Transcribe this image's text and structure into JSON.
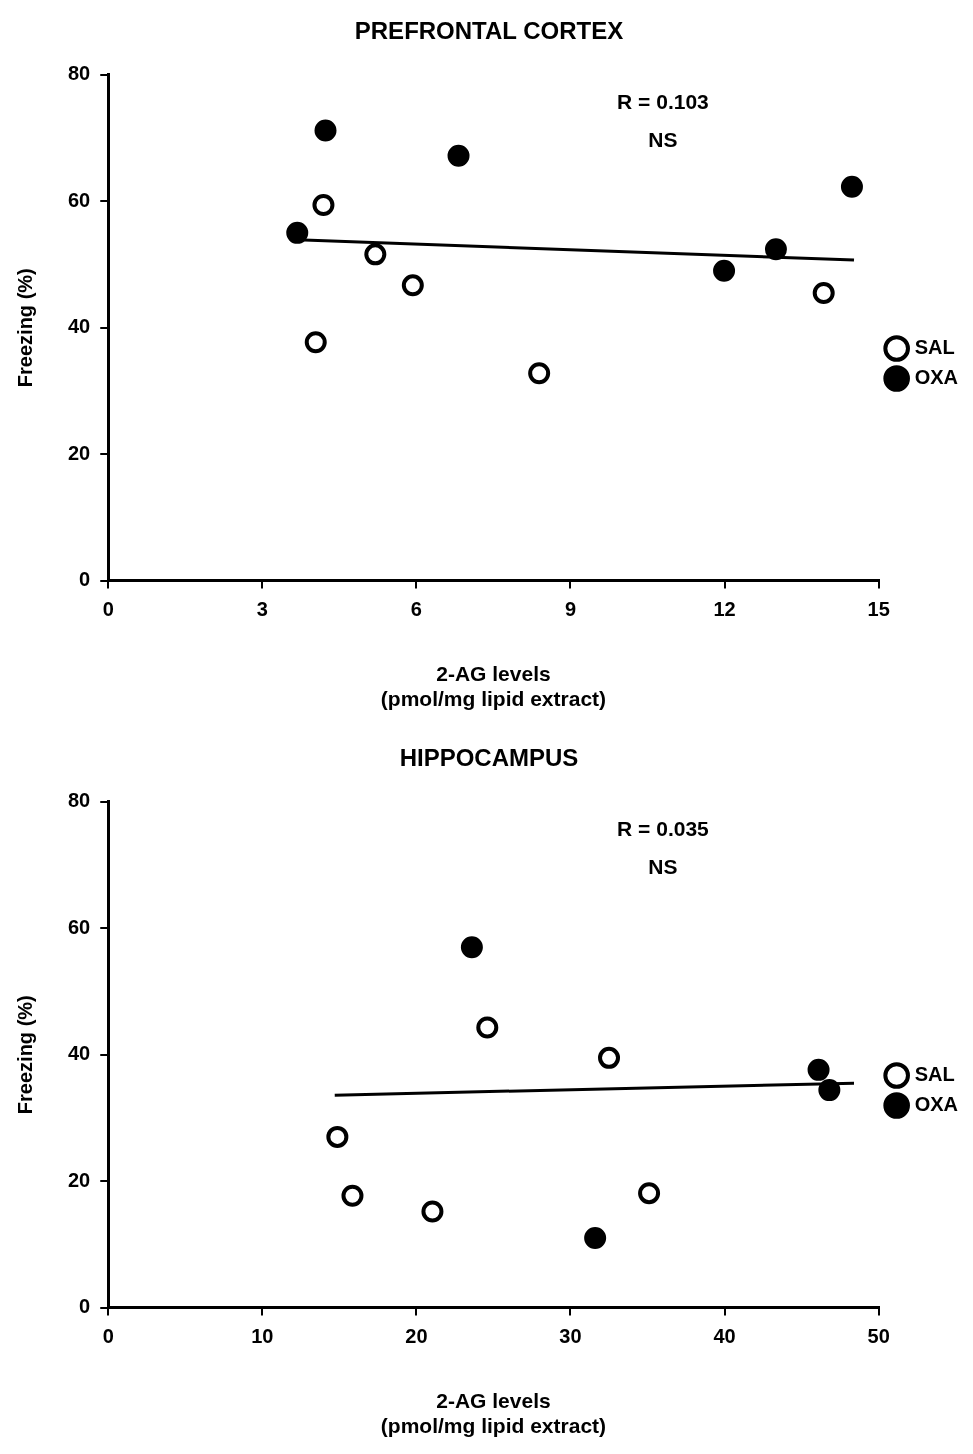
{
  "chart_data": [
    {
      "type": "scatter",
      "title": "PREFRONTAL CORTEX",
      "xlabel": "2-AG levels\n(pmol/mg lipid extract)",
      "ylabel": "Freezing (%)",
      "xlim": [
        0,
        15
      ],
      "xticks": [
        0,
        3,
        6,
        9,
        12,
        15
      ],
      "ylim": [
        0,
        80
      ],
      "yticks": [
        0,
        20,
        40,
        60,
        80
      ],
      "grid": false,
      "legend": "right",
      "annotations": [
        "R = 0.103",
        "NS"
      ],
      "series": [
        {
          "name": "SAL",
          "color": "#ffffff",
          "marker": "circle",
          "x": [
            4.19,
            4.04,
            5.2,
            5.93,
            8.39,
            13.93
          ],
          "values": [
            59.4,
            37.7,
            51.6,
            46.7,
            32.8,
            45.5
          ]
        },
        {
          "name": "OXA",
          "color": "#000000",
          "marker": "circle",
          "x": [
            3.68,
            4.23,
            6.82,
            11.99,
            13.0,
            14.48
          ],
          "values": [
            55.0,
            71.2,
            67.2,
            49.0,
            52.4,
            62.3
          ]
        },
        {
          "type": "line",
          "color": "#000000",
          "marker": "none",
          "x": [
            3.68,
            14.52
          ],
          "values": [
            53.9,
            50.7
          ]
        }
      ]
    },
    {
      "type": "scatter",
      "title": "HIPPOCAMPUS",
      "xlabel": "2-AG levels\n(pmol/mg lipid extract)",
      "ylabel": "Freezing (%)",
      "xlim": [
        0,
        50
      ],
      "xticks": [
        0,
        10,
        20,
        30,
        40,
        50
      ],
      "ylim": [
        0,
        80
      ],
      "yticks": [
        0,
        20,
        40,
        60,
        80
      ],
      "grid": false,
      "legend": "right",
      "annotations": [
        "R = 0.035",
        "NS"
      ],
      "series": [
        {
          "name": "SAL",
          "color": "#ffffff",
          "marker": "circle",
          "x": [
            14.87,
            15.85,
            21.04,
            24.6,
            32.5,
            35.1
          ],
          "values": [
            27.0,
            17.7,
            15.2,
            44.3,
            39.5,
            18.1
          ]
        },
        {
          "name": "OXA",
          "color": "#000000",
          "marker": "circle",
          "x": [
            23.6,
            31.6,
            46.1,
            46.8
          ],
          "values": [
            57.0,
            11.0,
            37.6,
            34.4
          ]
        },
        {
          "type": "line",
          "color": "#000000",
          "marker": "none",
          "x": [
            14.7,
            48.4
          ],
          "values": [
            33.6,
            35.5
          ]
        }
      ]
    }
  ]
}
